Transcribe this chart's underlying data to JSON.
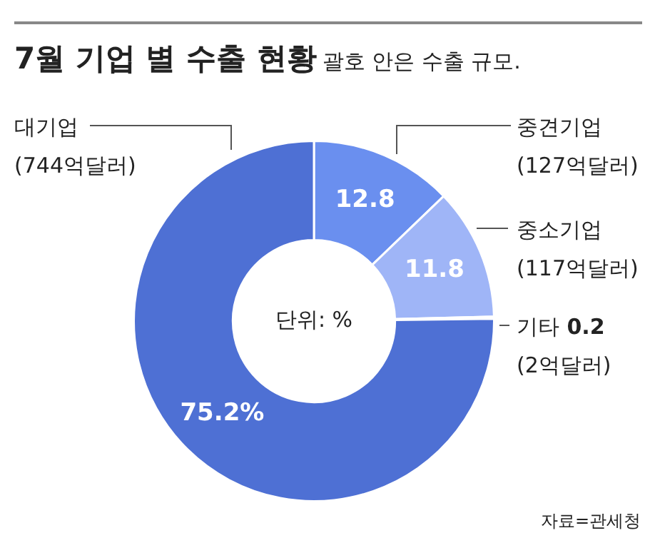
{
  "chart_data": {
    "type": "donut",
    "title": "7월 기업 별 수출 현황",
    "subtitle": "괄호 안은 수출 규모.",
    "categories": [
      "중견기업",
      "중소기업",
      "기타",
      "대기업"
    ],
    "values": [
      12.8,
      11.8,
      0.2,
      75.2
    ],
    "colors": [
      "#6a8fef",
      "#9fb5f7",
      "#cdd8fa",
      "#4e70d4"
    ],
    "value_labels": [
      "12.8",
      "11.8",
      "0.2",
      "75.2%"
    ],
    "annotations": [
      "(127억달러)",
      "(117억달러)",
      "(2억달러)",
      "(744억달러)",
      "단위: %",
      "자료=관세청"
    ]
  }
}
